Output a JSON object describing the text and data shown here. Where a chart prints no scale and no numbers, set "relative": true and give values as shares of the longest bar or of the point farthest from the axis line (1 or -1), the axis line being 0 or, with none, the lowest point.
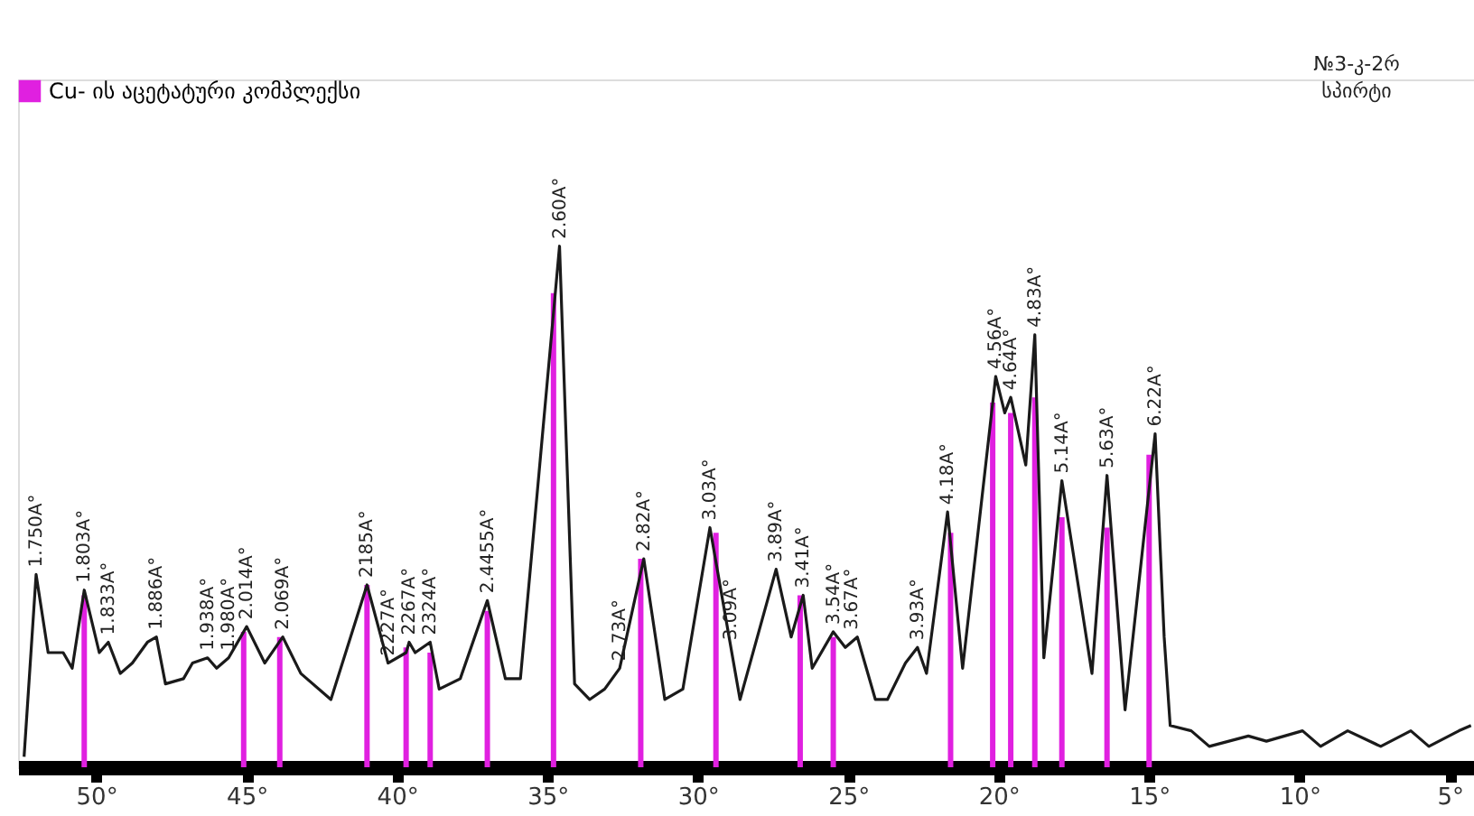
{
  "chart_data": {
    "type": "line",
    "relative": true,
    "legend": "top left",
    "xlim": [
      52.6,
      4.2
    ],
    "xticks": [
      {
        "value": 50,
        "label": "50°"
      },
      {
        "value": 45,
        "label": "45°"
      },
      {
        "value": 40,
        "label": "40°"
      },
      {
        "value": 35,
        "label": "35°"
      },
      {
        "value": 30,
        "label": "30°"
      },
      {
        "value": 25,
        "label": "25°"
      },
      {
        "value": 20,
        "label": "20°"
      },
      {
        "value": 15,
        "label": "15°"
      },
      {
        "value": 10,
        "label": "10°"
      },
      {
        "value": 5,
        "label": "5°"
      }
    ],
    "series": [
      {
        "type": "bar",
        "name": "Cu- ის აცეტატური კომპლექსი",
        "color": "#e020e0",
        "x": [
          50.4,
          45.1,
          43.9,
          41.0,
          39.7,
          38.9,
          37.0,
          34.8,
          31.9,
          29.4,
          26.6,
          25.5,
          21.6,
          20.2,
          19.6,
          18.8,
          17.9,
          16.4,
          15.0
        ],
        "values": [
          0.33,
          0.26,
          0.25,
          0.35,
          0.23,
          0.22,
          0.3,
          0.91,
          0.4,
          0.45,
          0.33,
          0.25,
          0.45,
          0.7,
          0.68,
          0.71,
          0.48,
          0.46,
          0.6
        ]
      },
      {
        "color": "#1a1a1a",
        "x": [
          52.4,
          52.0,
          51.6,
          51.1,
          50.8,
          50.4,
          49.9,
          49.6,
          49.2,
          48.8,
          48.3,
          48.0,
          47.7,
          47.1,
          46.8,
          46.3,
          46.0,
          45.6,
          45.0,
          44.4,
          43.8,
          43.2,
          42.2,
          41.0,
          40.3,
          39.7,
          39.6,
          39.4,
          38.9,
          38.6,
          37.9,
          37.0,
          36.4,
          35.9,
          34.6,
          34.1,
          33.6,
          33.1,
          32.6,
          31.8,
          31.1,
          30.5,
          29.6,
          28.6,
          27.4,
          26.9,
          26.5,
          26.2,
          25.5,
          25.1,
          24.7,
          24.1,
          23.7,
          23.1,
          22.7,
          22.4,
          21.7,
          21.2,
          20.1,
          19.8,
          19.6,
          19.1,
          18.8,
          18.5,
          17.9,
          16.9,
          16.4,
          15.8,
          14.8,
          14.5,
          14.3,
          13.6,
          13.0,
          11.7,
          11.1,
          9.9,
          9.3,
          8.4,
          7.3,
          6.3,
          5.7,
          4.7,
          4.3
        ],
        "values": [
          0.02,
          0.37,
          0.22,
          0.22,
          0.19,
          0.34,
          0.22,
          0.24,
          0.18,
          0.2,
          0.24,
          0.25,
          0.16,
          0.17,
          0.2,
          0.21,
          0.19,
          0.21,
          0.27,
          0.2,
          0.25,
          0.18,
          0.13,
          0.35,
          0.2,
          0.22,
          0.24,
          0.22,
          0.24,
          0.15,
          0.17,
          0.32,
          0.17,
          0.17,
          1.0,
          0.16,
          0.13,
          0.15,
          0.19,
          0.4,
          0.13,
          0.15,
          0.46,
          0.13,
          0.38,
          0.25,
          0.33,
          0.19,
          0.26,
          0.23,
          0.25,
          0.13,
          0.13,
          0.2,
          0.23,
          0.18,
          0.49,
          0.19,
          0.75,
          0.68,
          0.71,
          0.58,
          0.83,
          0.21,
          0.55,
          0.18,
          0.56,
          0.11,
          0.64,
          0.25,
          0.08,
          0.07,
          0.04,
          0.06,
          0.05,
          0.07,
          0.04,
          0.07,
          0.04,
          0.07,
          0.04,
          0.07,
          0.08
        ]
      }
    ],
    "annotations": [
      "№3-კ-2რ",
      "სპირტი",
      {
        "text": "1.750A°",
        "x": 52.0,
        "y": 0.37
      },
      {
        "text": "1.803A°",
        "x": 50.4,
        "y": 0.34
      },
      {
        "text": "1.833A°",
        "x": 49.6,
        "y": 0.24
      },
      {
        "text": "1.886A°",
        "x": 48.0,
        "y": 0.25
      },
      {
        "text": "1.938A°",
        "x": 46.3,
        "y": 0.21
      },
      {
        "text": "1.980A°",
        "x": 45.6,
        "y": 0.21
      },
      {
        "text": "2.014A°",
        "x": 45.0,
        "y": 0.27
      },
      {
        "text": "2.069A°",
        "x": 43.8,
        "y": 0.25
      },
      {
        "text": "2185A°",
        "x": 41.0,
        "y": 0.35
      },
      {
        "text": "2227A°",
        "x": 40.3,
        "y": 0.2
      },
      {
        "text": "2267A°",
        "x": 39.6,
        "y": 0.24
      },
      {
        "text": "2324A°",
        "x": 38.9,
        "y": 0.24
      },
      {
        "text": "2.4455A°",
        "x": 37.0,
        "y": 0.32
      },
      {
        "text": "2.60A°",
        "x": 34.6,
        "y": 1.0
      },
      {
        "text": "2.73A°",
        "x": 32.6,
        "y": 0.19
      },
      {
        "text": "2.82A°",
        "x": 31.8,
        "y": 0.4
      },
      {
        "text": "3.03A°",
        "x": 29.6,
        "y": 0.46
      },
      {
        "text": "3.09A°",
        "x": 28.9,
        "y": 0.23
      },
      {
        "text": "3.89A°",
        "x": 27.4,
        "y": 0.38
      },
      {
        "text": "3.41A°",
        "x": 26.5,
        "y": 0.33
      },
      {
        "text": "3.54A°",
        "x": 25.5,
        "y": 0.26
      },
      {
        "text": "3.67A°",
        "x": 24.9,
        "y": 0.25
      },
      {
        "text": "3.93A°",
        "x": 22.7,
        "y": 0.23
      },
      {
        "text": "4.18A°",
        "x": 21.7,
        "y": 0.49
      },
      {
        "text": "4.56A°",
        "x": 20.1,
        "y": 0.75
      },
      {
        "text": "4.64A°",
        "x": 19.6,
        "y": 0.71
      },
      {
        "text": "4.83A°",
        "x": 18.8,
        "y": 0.83
      },
      {
        "text": "5.14A°",
        "x": 17.9,
        "y": 0.55
      },
      {
        "text": "5.63A°",
        "x": 16.4,
        "y": 0.56
      },
      {
        "text": "6.22A°",
        "x": 14.8,
        "y": 0.64
      }
    ]
  }
}
